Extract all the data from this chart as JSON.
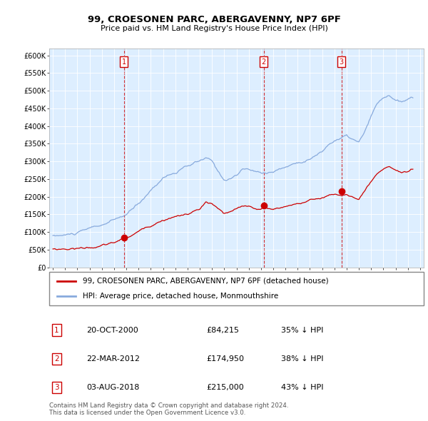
{
  "title": "99, CROESONEN PARC, ABERGAVENNY, NP7 6PF",
  "subtitle": "Price paid vs. HM Land Registry's House Price Index (HPI)",
  "ylim": [
    0,
    620000
  ],
  "yticks": [
    0,
    50000,
    100000,
    150000,
    200000,
    250000,
    300000,
    350000,
    400000,
    450000,
    500000,
    550000,
    600000
  ],
  "ytick_labels": [
    "£0",
    "£50K",
    "£100K",
    "£150K",
    "£200K",
    "£250K",
    "£300K",
    "£350K",
    "£400K",
    "£450K",
    "£500K",
    "£550K",
    "£600K"
  ],
  "xlim_start": 1994.7,
  "xlim_end": 2025.3,
  "sale_color": "#cc0000",
  "hpi_color": "#88aadd",
  "bg_color": "#ddeeff",
  "legend_sale_label": "99, CROESONEN PARC, ABERGAVENNY, NP7 6PF (detached house)",
  "legend_hpi_label": "HPI: Average price, detached house, Monmouthshire",
  "sales": [
    {
      "date_year": 2000.8,
      "price": 84215,
      "label": "1"
    },
    {
      "date_year": 2012.22,
      "price": 174950,
      "label": "2"
    },
    {
      "date_year": 2018.58,
      "price": 215000,
      "label": "3"
    }
  ],
  "sale_annotations": [
    {
      "label": "1",
      "date": "20-OCT-2000",
      "price": "£84,215",
      "pct": "35% ↓ HPI"
    },
    {
      "label": "2",
      "date": "22-MAR-2012",
      "price": "£174,950",
      "pct": "38% ↓ HPI"
    },
    {
      "label": "3",
      "date": "03-AUG-2018",
      "price": "£215,000",
      "pct": "43% ↓ HPI"
    }
  ],
  "footer": "Contains HM Land Registry data © Crown copyright and database right 2024.\nThis data is licensed under the Open Government Licence v3.0."
}
